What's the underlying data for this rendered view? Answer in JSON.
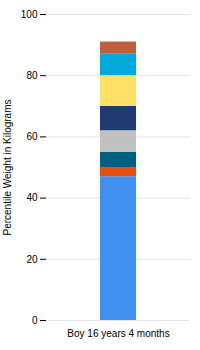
{
  "chart_data": {
    "type": "bar",
    "stacked": true,
    "categories": [
      "Boy 16 years 4 months"
    ],
    "series": [
      {
        "color": "#4090F0",
        "values": [
          47
        ]
      },
      {
        "color": "#E84E0F",
        "values": [
          3
        ]
      },
      {
        "color": "#006080",
        "values": [
          5
        ]
      },
      {
        "color": "#C0C0C0",
        "values": [
          7
        ]
      },
      {
        "color": "#1F3A6E",
        "values": [
          8
        ]
      },
      {
        "color": "#FFE066",
        "values": [
          10
        ]
      },
      {
        "color": "#00AADD",
        "values": [
          7
        ]
      },
      {
        "color": "#C06040",
        "values": [
          4
        ]
      }
    ],
    "ylabel": "Percentile Weight in Kilograms",
    "ylim": [
      0,
      100
    ],
    "yticks": [
      0,
      20,
      40,
      60,
      80,
      100
    ],
    "grid": true
  }
}
